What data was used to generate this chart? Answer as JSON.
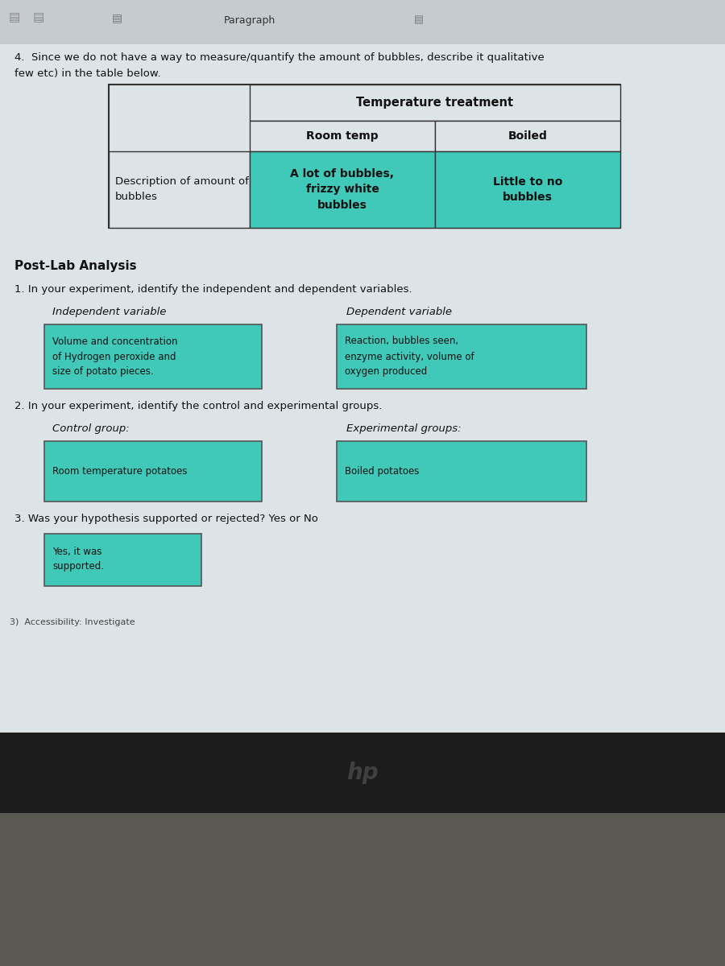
{
  "teal_color": "#40c8b8",
  "doc_bg": "#dde4e8",
  "toolbar_bg": "#c8cdd0",
  "dark_monitor": "#1a1a1a",
  "monitor_bezel": "#2a2a2a",
  "desk_color": "#888880",
  "header_text": "Paragraph",
  "line4_text": "4.  Since we do not have a way to measure/quantify the amount of bubbles, describe it qualitative",
  "line4b_text": "few etc) in the table below.",
  "table_header": "Temperature treatment",
  "col1_header": "Room temp",
  "col2_header": "Boiled",
  "row_label": "Description of amount of\nbubbles",
  "cell1_data": "A lot of bubbles,\nfrizzy white\nbubbles",
  "cell2_data": "Little to no\nbubbles",
  "postlab_header": "Post-Lab Analysis",
  "q1_text": "1. In your experiment, identify the independent and dependent variables.",
  "indep_label": "Independent variable",
  "dep_label": "Dependent variable",
  "indep_box_text": "Volume and concentration\nof Hydrogen peroxide and\nsize of potato pieces.",
  "dep_box_text": "Reaction, bubbles seen,\nenzyme activity, volume of\noxygen produced",
  "q2_text": "2. In your experiment, identify the control and experimental groups.",
  "control_label": "Control group:",
  "exp_label": "Experimental groups:",
  "control_box_text": "Room temperature potatoes",
  "exp_box_text": "Boiled potatoes",
  "q3_text": "3. Was your hypothesis supported or rejected? Yes or No",
  "q3_box_text": "Yes, it was\nsupported.",
  "footer_text": "3)  Accessibility: Investigate"
}
